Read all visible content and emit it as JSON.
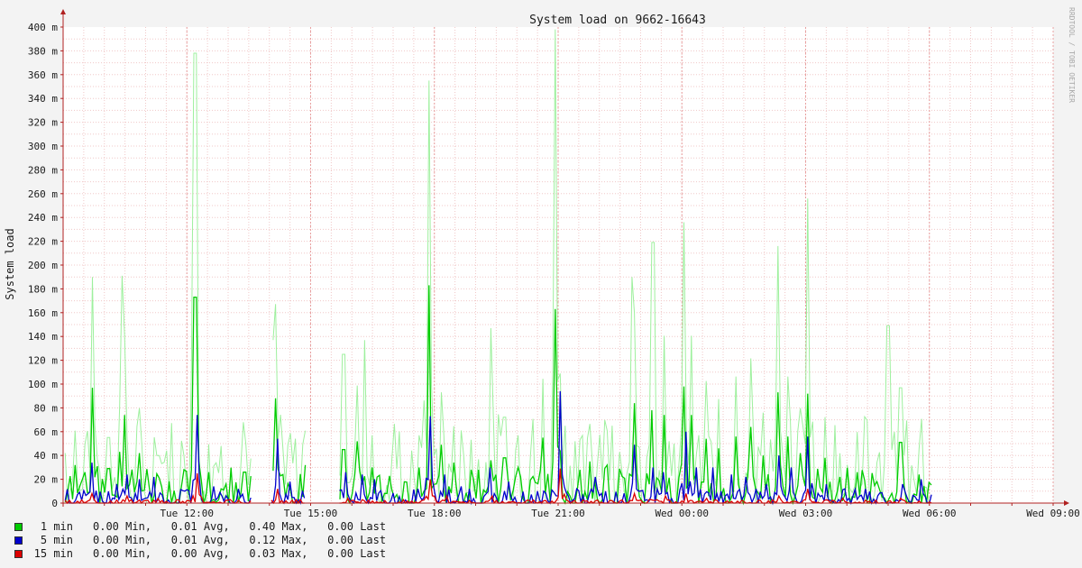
{
  "chart_data": {
    "type": "line",
    "title": "System load on 9662-16643",
    "ylabel": "System load",
    "watermark": "RRDTOOL / TOBI OETIKER",
    "ylim": [
      0,
      0.4
    ],
    "y_ticks": [
      {
        "value": 0,
        "label": "0"
      },
      {
        "value": 0.02,
        "label": "20 m"
      },
      {
        "value": 0.04,
        "label": "40 m"
      },
      {
        "value": 0.06,
        "label": "60 m"
      },
      {
        "value": 0.08,
        "label": "80 m"
      },
      {
        "value": 0.1,
        "label": "100 m"
      },
      {
        "value": 0.12,
        "label": "120 m"
      },
      {
        "value": 0.14,
        "label": "140 m"
      },
      {
        "value": 0.16,
        "label": "160 m"
      },
      {
        "value": 0.18,
        "label": "180 m"
      },
      {
        "value": 0.2,
        "label": "200 m"
      },
      {
        "value": 0.22,
        "label": "220 m"
      },
      {
        "value": 0.24,
        "label": "240 m"
      },
      {
        "value": 0.26,
        "label": "260 m"
      },
      {
        "value": 0.28,
        "label": "280 m"
      },
      {
        "value": 0.3,
        "label": "300 m"
      },
      {
        "value": 0.32,
        "label": "320 m"
      },
      {
        "value": 0.34,
        "label": "340 m"
      },
      {
        "value": 0.36,
        "label": "360 m"
      },
      {
        "value": 0.38,
        "label": "380 m"
      },
      {
        "value": 0.4,
        "label": "400 m"
      }
    ],
    "xlim_hours": [
      9,
      33
    ],
    "x_ticks": [
      {
        "hour": 12,
        "label": "Tue 12:00"
      },
      {
        "hour": 15,
        "label": "Tue 15:00"
      },
      {
        "hour": 18,
        "label": "Tue 18:00"
      },
      {
        "hour": 21,
        "label": "Tue 21:00"
      },
      {
        "hour": 24,
        "label": "Wed 00:00"
      },
      {
        "hour": 27,
        "label": "Wed 03:00"
      },
      {
        "hour": 30,
        "label": "Wed 06:00"
      },
      {
        "hour": 33,
        "label": "Wed 09:00"
      }
    ],
    "grid": true,
    "colors": {
      "background": "#ffffff",
      "grid": "#f0c8c8",
      "axis": "#b02020",
      "one_min": "#00cc00",
      "one_min_max": "#9ef09e",
      "five_min": "#0000cc",
      "fifteen_min": "#dd0000"
    },
    "series": [
      {
        "name": "1 min",
        "color": "#00cc00",
        "stats": "0.00 Min,   0.01 Avg,   0.40 Max,   0.00 Last",
        "spikes": [
          {
            "hour": 9.3,
            "value": 0.032
          },
          {
            "hour": 9.55,
            "value": 0.026
          },
          {
            "hour": 9.75,
            "value": 0.02
          },
          {
            "hour": 9.7,
            "value": 0.097
          },
          {
            "hour": 10.1,
            "value": 0.029
          },
          {
            "hour": 10.35,
            "value": 0.043
          },
          {
            "hour": 10.5,
            "value": 0.074
          },
          {
            "hour": 10.85,
            "value": 0.042
          },
          {
            "hour": 11.3,
            "value": 0.021
          },
          {
            "hour": 11.95,
            "value": 0.021
          },
          {
            "hour": 12.2,
            "value": 0.173
          },
          {
            "hour": 12.55,
            "value": 0.026
          },
          {
            "hour": 12.85,
            "value": 0.012
          },
          {
            "hour": 13.4,
            "value": 0.026
          },
          {
            "hour": 14.15,
            "value": 0.088
          },
          {
            "hour": 14.35,
            "value": 0.024
          },
          {
            "hour": 14.85,
            "value": 0.032
          },
          {
            "hour": 15.8,
            "value": 0.045
          },
          {
            "hour": 16.15,
            "value": 0.052
          },
          {
            "hour": 16.5,
            "value": 0.03
          },
          {
            "hour": 16.85,
            "value": 0.008
          },
          {
            "hour": 17.65,
            "value": 0.03
          },
          {
            "hour": 17.85,
            "value": 0.183
          },
          {
            "hour": 18.15,
            "value": 0.049
          },
          {
            "hour": 18.45,
            "value": 0.034
          },
          {
            "hour": 18.9,
            "value": 0.028
          },
          {
            "hour": 19.35,
            "value": 0.036
          },
          {
            "hour": 19.7,
            "value": 0.038
          },
          {
            "hour": 20.05,
            "value": 0.03
          },
          {
            "hour": 20.65,
            "value": 0.055
          },
          {
            "hour": 20.95,
            "value": 0.163
          },
          {
            "hour": 21.55,
            "value": 0.028
          },
          {
            "hour": 21.75,
            "value": 0.035
          },
          {
            "hour": 22.2,
            "value": 0.032
          },
          {
            "hour": 22.85,
            "value": 0.084
          },
          {
            "hour": 23.25,
            "value": 0.078
          },
          {
            "hour": 23.55,
            "value": 0.074
          },
          {
            "hour": 24.05,
            "value": 0.098
          },
          {
            "hour": 24.25,
            "value": 0.074
          },
          {
            "hour": 24.6,
            "value": 0.054
          },
          {
            "hour": 24.9,
            "value": 0.046
          },
          {
            "hour": 25.3,
            "value": 0.056
          },
          {
            "hour": 25.65,
            "value": 0.064
          },
          {
            "hour": 25.95,
            "value": 0.04
          },
          {
            "hour": 26.35,
            "value": 0.093
          },
          {
            "hour": 26.55,
            "value": 0.056
          },
          {
            "hour": 26.85,
            "value": 0.042
          },
          {
            "hour": 27.05,
            "value": 0.092
          },
          {
            "hour": 27.45,
            "value": 0.038
          },
          {
            "hour": 27.85,
            "value": 0.022
          },
          {
            "hour": 28.25,
            "value": 0.026
          },
          {
            "hour": 28.75,
            "value": 0.018
          },
          {
            "hour": 29.3,
            "value": 0.051
          },
          {
            "hour": 29.75,
            "value": 0.024
          }
        ]
      },
      {
        "name": "5 min",
        "color": "#0000cc",
        "stats": "0.00 Min,   0.01 Avg,   0.12 Max,   0.00 Last",
        "spikes": [
          {
            "hour": 9.4,
            "value": 0.009
          },
          {
            "hour": 9.72,
            "value": 0.034
          },
          {
            "hour": 10.3,
            "value": 0.016
          },
          {
            "hour": 10.55,
            "value": 0.024
          },
          {
            "hour": 10.85,
            "value": 0.02
          },
          {
            "hour": 11.2,
            "value": 0.022
          },
          {
            "hour": 11.95,
            "value": 0.01
          },
          {
            "hour": 12.25,
            "value": 0.074
          },
          {
            "hour": 12.65,
            "value": 0.014
          },
          {
            "hour": 14.2,
            "value": 0.054
          },
          {
            "hour": 14.5,
            "value": 0.018
          },
          {
            "hour": 15.85,
            "value": 0.026
          },
          {
            "hour": 16.25,
            "value": 0.024
          },
          {
            "hour": 16.55,
            "value": 0.02
          },
          {
            "hour": 17.6,
            "value": 0.012
          },
          {
            "hour": 17.9,
            "value": 0.073
          },
          {
            "hour": 18.25,
            "value": 0.024
          },
          {
            "hour": 18.65,
            "value": 0.014
          },
          {
            "hour": 19.35,
            "value": 0.03
          },
          {
            "hour": 19.8,
            "value": 0.018
          },
          {
            "hour": 20.65,
            "value": 0.01
          },
          {
            "hour": 21.05,
            "value": 0.094
          },
          {
            "hour": 21.45,
            "value": 0.012
          },
          {
            "hour": 21.9,
            "value": 0.022
          },
          {
            "hour": 22.85,
            "value": 0.049
          },
          {
            "hour": 23.3,
            "value": 0.03
          },
          {
            "hour": 23.55,
            "value": 0.026
          },
          {
            "hour": 24.1,
            "value": 0.06
          },
          {
            "hour": 24.35,
            "value": 0.03
          },
          {
            "hour": 24.75,
            "value": 0.03
          },
          {
            "hour": 25.2,
            "value": 0.024
          },
          {
            "hour": 25.55,
            "value": 0.022
          },
          {
            "hour": 26.05,
            "value": 0.016
          },
          {
            "hour": 26.35,
            "value": 0.04
          },
          {
            "hour": 26.65,
            "value": 0.03
          },
          {
            "hour": 27.05,
            "value": 0.056
          },
          {
            "hour": 27.5,
            "value": 0.016
          },
          {
            "hour": 27.95,
            "value": 0.012
          },
          {
            "hour": 28.45,
            "value": 0.012
          },
          {
            "hour": 29.35,
            "value": 0.016
          },
          {
            "hour": 29.8,
            "value": 0.02
          }
        ]
      },
      {
        "name": "15 min",
        "color": "#dd0000",
        "stats": "0.00 Min,   0.00 Avg,   0.03 Max,   0.00 Last",
        "spikes": [
          {
            "hour": 9.7,
            "value": 0.008
          },
          {
            "hour": 10.55,
            "value": 0.006
          },
          {
            "hour": 11.3,
            "value": 0.004
          },
          {
            "hour": 12.25,
            "value": 0.025
          },
          {
            "hour": 14.2,
            "value": 0.012
          },
          {
            "hour": 15.9,
            "value": 0.004
          },
          {
            "hour": 17.9,
            "value": 0.02
          },
          {
            "hour": 18.3,
            "value": 0.006
          },
          {
            "hour": 19.4,
            "value": 0.006
          },
          {
            "hour": 21.05,
            "value": 0.029
          },
          {
            "hour": 22.85,
            "value": 0.008
          },
          {
            "hour": 23.6,
            "value": 0.006
          },
          {
            "hour": 24.1,
            "value": 0.008
          },
          {
            "hour": 24.6,
            "value": 0.004
          },
          {
            "hour": 26.35,
            "value": 0.006
          },
          {
            "hour": 27.05,
            "value": 0.012
          },
          {
            "hour": 27.9,
            "value": 0.004
          },
          {
            "hour": 29.3,
            "value": 0.004
          }
        ]
      }
    ],
    "max_envelope_spikes": [
      {
        "hour": 9.72,
        "value": 0.19
      },
      {
        "hour": 10.45,
        "value": 0.191
      },
      {
        "hour": 12.2,
        "value": 0.378
      },
      {
        "hour": 14.1,
        "value": 0.137
      },
      {
        "hour": 15.8,
        "value": 0.125
      },
      {
        "hour": 16.3,
        "value": 0.137
      },
      {
        "hour": 17.85,
        "value": 0.355
      },
      {
        "hour": 19.35,
        "value": 0.147
      },
      {
        "hour": 20.95,
        "value": 0.398
      },
      {
        "hour": 22.8,
        "value": 0.19
      },
      {
        "hour": 23.3,
        "value": 0.219
      },
      {
        "hour": 24.05,
        "value": 0.236
      },
      {
        "hour": 26.35,
        "value": 0.216
      },
      {
        "hour": 27.05,
        "value": 0.256
      },
      {
        "hour": 29.0,
        "value": 0.149
      }
    ],
    "gaps_hours": [
      [
        13.6,
        14.05
      ],
      [
        14.9,
        15.7
      ]
    ]
  }
}
